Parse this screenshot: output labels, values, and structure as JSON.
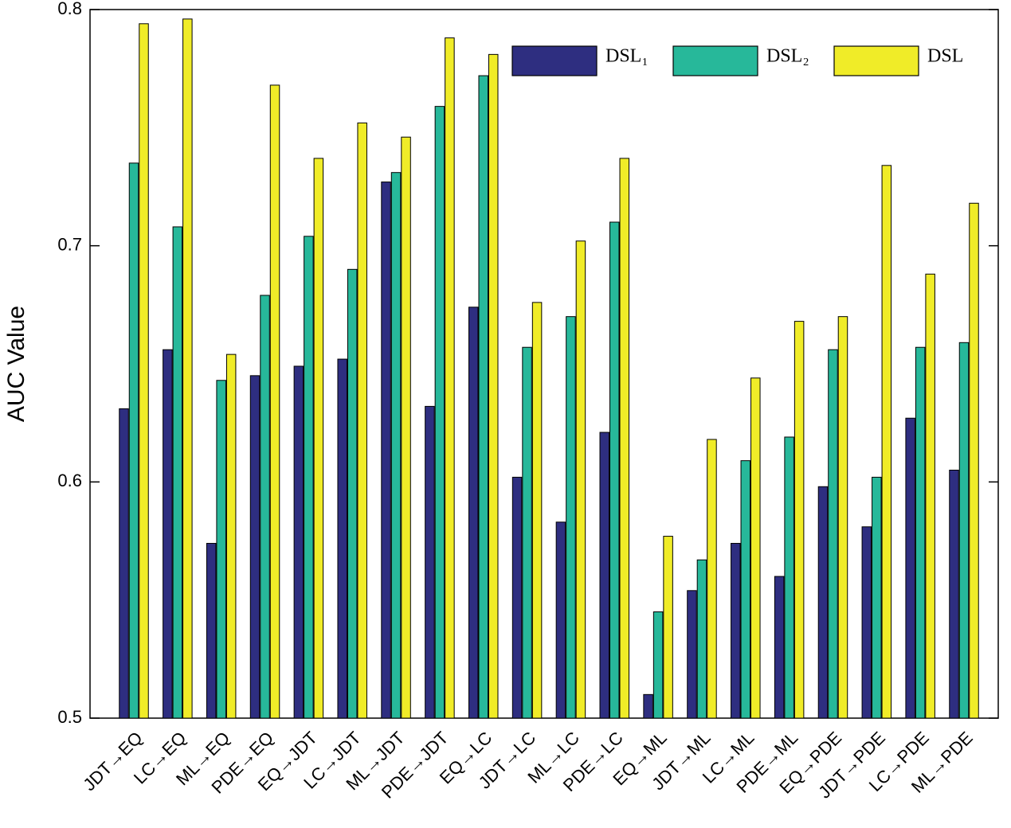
{
  "chart_data": {
    "type": "bar",
    "y_label": "AUC Value",
    "categories": [
      "JDT→EQ",
      "LC→EQ",
      "ML→EQ",
      "PDE→EQ",
      "EQ→JDT",
      "LC→JDT",
      "ML→JDT",
      "PDE→JDT",
      "EQ→LC",
      "JDT→LC",
      "ML→LC",
      "PDE→LC",
      "EQ→ML",
      "JDT→ML",
      "LC→ML",
      "PDE→ML",
      "EQ→PDE",
      "JDT→PDE",
      "LC→PDE",
      "ML→PDE"
    ],
    "series": [
      {
        "name": "DSL₁",
        "color": "#2e2e80",
        "values": [
          0.631,
          0.656,
          0.574,
          0.645,
          0.649,
          0.652,
          0.727,
          0.632,
          0.674,
          0.602,
          0.583,
          0.621,
          0.51,
          0.554,
          0.574,
          0.56,
          0.598,
          0.581,
          0.627,
          0.605
        ]
      },
      {
        "name": "DSL₂",
        "color": "#27b89a",
        "values": [
          0.735,
          0.708,
          0.643,
          0.679,
          0.704,
          0.69,
          0.731,
          0.759,
          0.772,
          0.657,
          0.67,
          0.71,
          0.545,
          0.567,
          0.609,
          0.619,
          0.656,
          0.602,
          0.657,
          0.659
        ]
      },
      {
        "name": "DSL",
        "color": "#f0ec28",
        "values": [
          0.794,
          0.796,
          0.654,
          0.768,
          0.737,
          0.752,
          0.746,
          0.788,
          0.781,
          0.676,
          0.702,
          0.737,
          0.577,
          0.618,
          0.644,
          0.668,
          0.67,
          0.734,
          0.688,
          0.718
        ]
      }
    ],
    "ylim": [
      0.5,
      0.8
    ],
    "yticks": [
      0.5,
      0.6,
      0.7,
      0.8
    ],
    "legend": "top-right"
  }
}
